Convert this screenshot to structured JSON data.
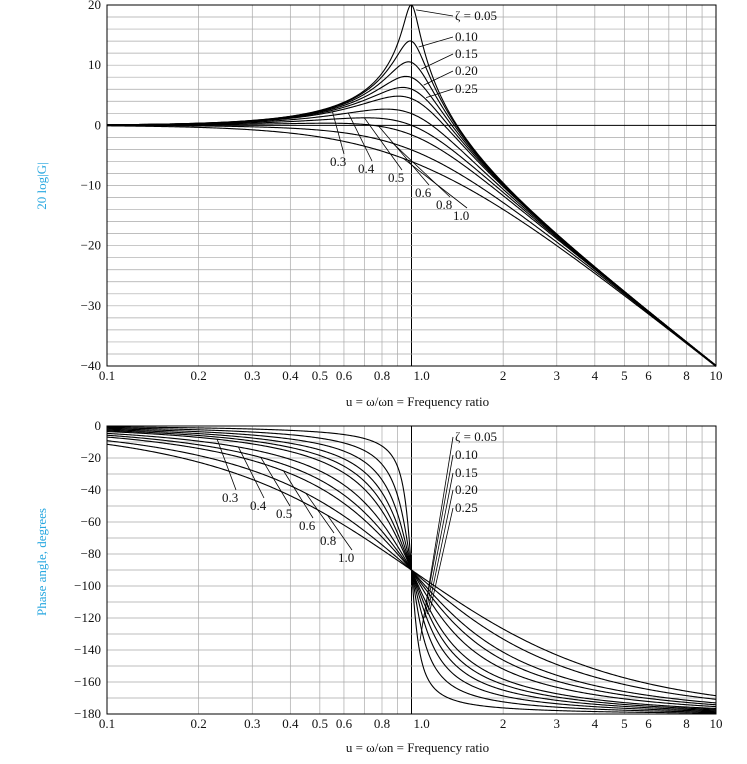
{
  "chart_data": [
    {
      "type": "line",
      "ylabel": "20 log|G|",
      "xlabel": "u = ω/ωn = Frequency ratio",
      "xscale": "log",
      "xlim": [
        0.1,
        10
      ],
      "ylim": [
        -40,
        20
      ],
      "xticks": [
        "0.1",
        "0.2",
        "0.3",
        "0.4",
        "0.5",
        "0.6",
        "0.8",
        "1.0",
        "2",
        "3",
        "4",
        "5",
        "6",
        "8",
        "10"
      ],
      "yticks": [
        "20",
        "10",
        "0",
        "−10",
        "−20",
        "−30",
        "−40"
      ],
      "grid": true,
      "series_labels": [
        "ζ = 0.05",
        "0.10",
        "0.15",
        "0.20",
        "0.25",
        "0.3",
        "0.4",
        "0.5",
        "0.6",
        "0.8",
        "1.0"
      ],
      "damping_ratios": [
        0.05,
        0.1,
        0.15,
        0.2,
        0.25,
        0.3,
        0.4,
        0.5,
        0.6,
        0.8,
        1.0
      ],
      "sample_points": {
        "x": [
          0.1,
          0.2,
          0.5,
          1.0,
          2,
          10
        ],
        "zeta_0.05_y": [
          0.09,
          0.35,
          2.46,
          20.0,
          -9.6,
          -39.9
        ],
        "zeta_1.0_y": [
          -0.09,
          -0.34,
          -1.94,
          -6.02,
          -13.98,
          -40.09
        ]
      }
    },
    {
      "type": "line",
      "ylabel": "Phase angle, degrees",
      "xlabel": "u = ω/ωn = Frequency ratio",
      "xscale": "log",
      "xlim": [
        0.1,
        10
      ],
      "ylim": [
        -180,
        0
      ],
      "xticks": [
        "0.1",
        "0.2",
        "0.3",
        "0.4",
        "0.5",
        "0.6",
        "0.8",
        "1.0",
        "2",
        "3",
        "4",
        "5",
        "6",
        "8",
        "10"
      ],
      "yticks": [
        "0",
        "−20",
        "−40",
        "−60",
        "−80",
        "−100",
        "−120",
        "−140",
        "−160",
        "−180"
      ],
      "grid": true,
      "series_labels": [
        "ζ = 0.05",
        "0.10",
        "0.15",
        "0.20",
        "0.25",
        "0.3",
        "0.4",
        "0.5",
        "0.6",
        "0.8",
        "1.0"
      ],
      "damping_ratios": [
        0.05,
        0.1,
        0.15,
        0.2,
        0.25,
        0.3,
        0.4,
        0.5,
        0.6,
        0.8,
        1.0
      ],
      "sample_points": {
        "x": [
          0.1,
          0.5,
          1.0,
          2,
          10
        ],
        "zeta_0.05_y": [
          -0.6,
          -3.8,
          -90,
          -176.2,
          -179.4
        ],
        "zeta_1.0_y": [
          -11.4,
          -53.1,
          -90,
          -126.9,
          -168.6
        ]
      }
    }
  ]
}
